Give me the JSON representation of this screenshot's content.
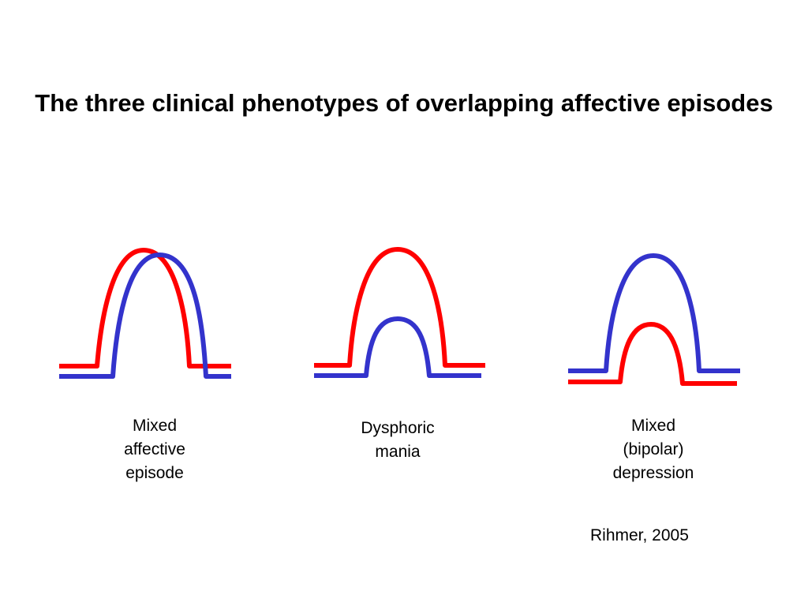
{
  "title": "The three clinical phenotypes of overlapping affective episodes",
  "colors": {
    "red_curve": "#ff0000",
    "blue_curve": "#3333cc",
    "background": "#ffffff"
  },
  "panels": [
    {
      "caption_lines": [
        "Mixed",
        "affective",
        "episode"
      ]
    },
    {
      "caption_lines": [
        "Dysphoric",
        "mania"
      ]
    },
    {
      "caption_lines": [
        "Mixed",
        "(bipolar)",
        "depression"
      ]
    }
  ],
  "citation": "Rihmer, 2005"
}
